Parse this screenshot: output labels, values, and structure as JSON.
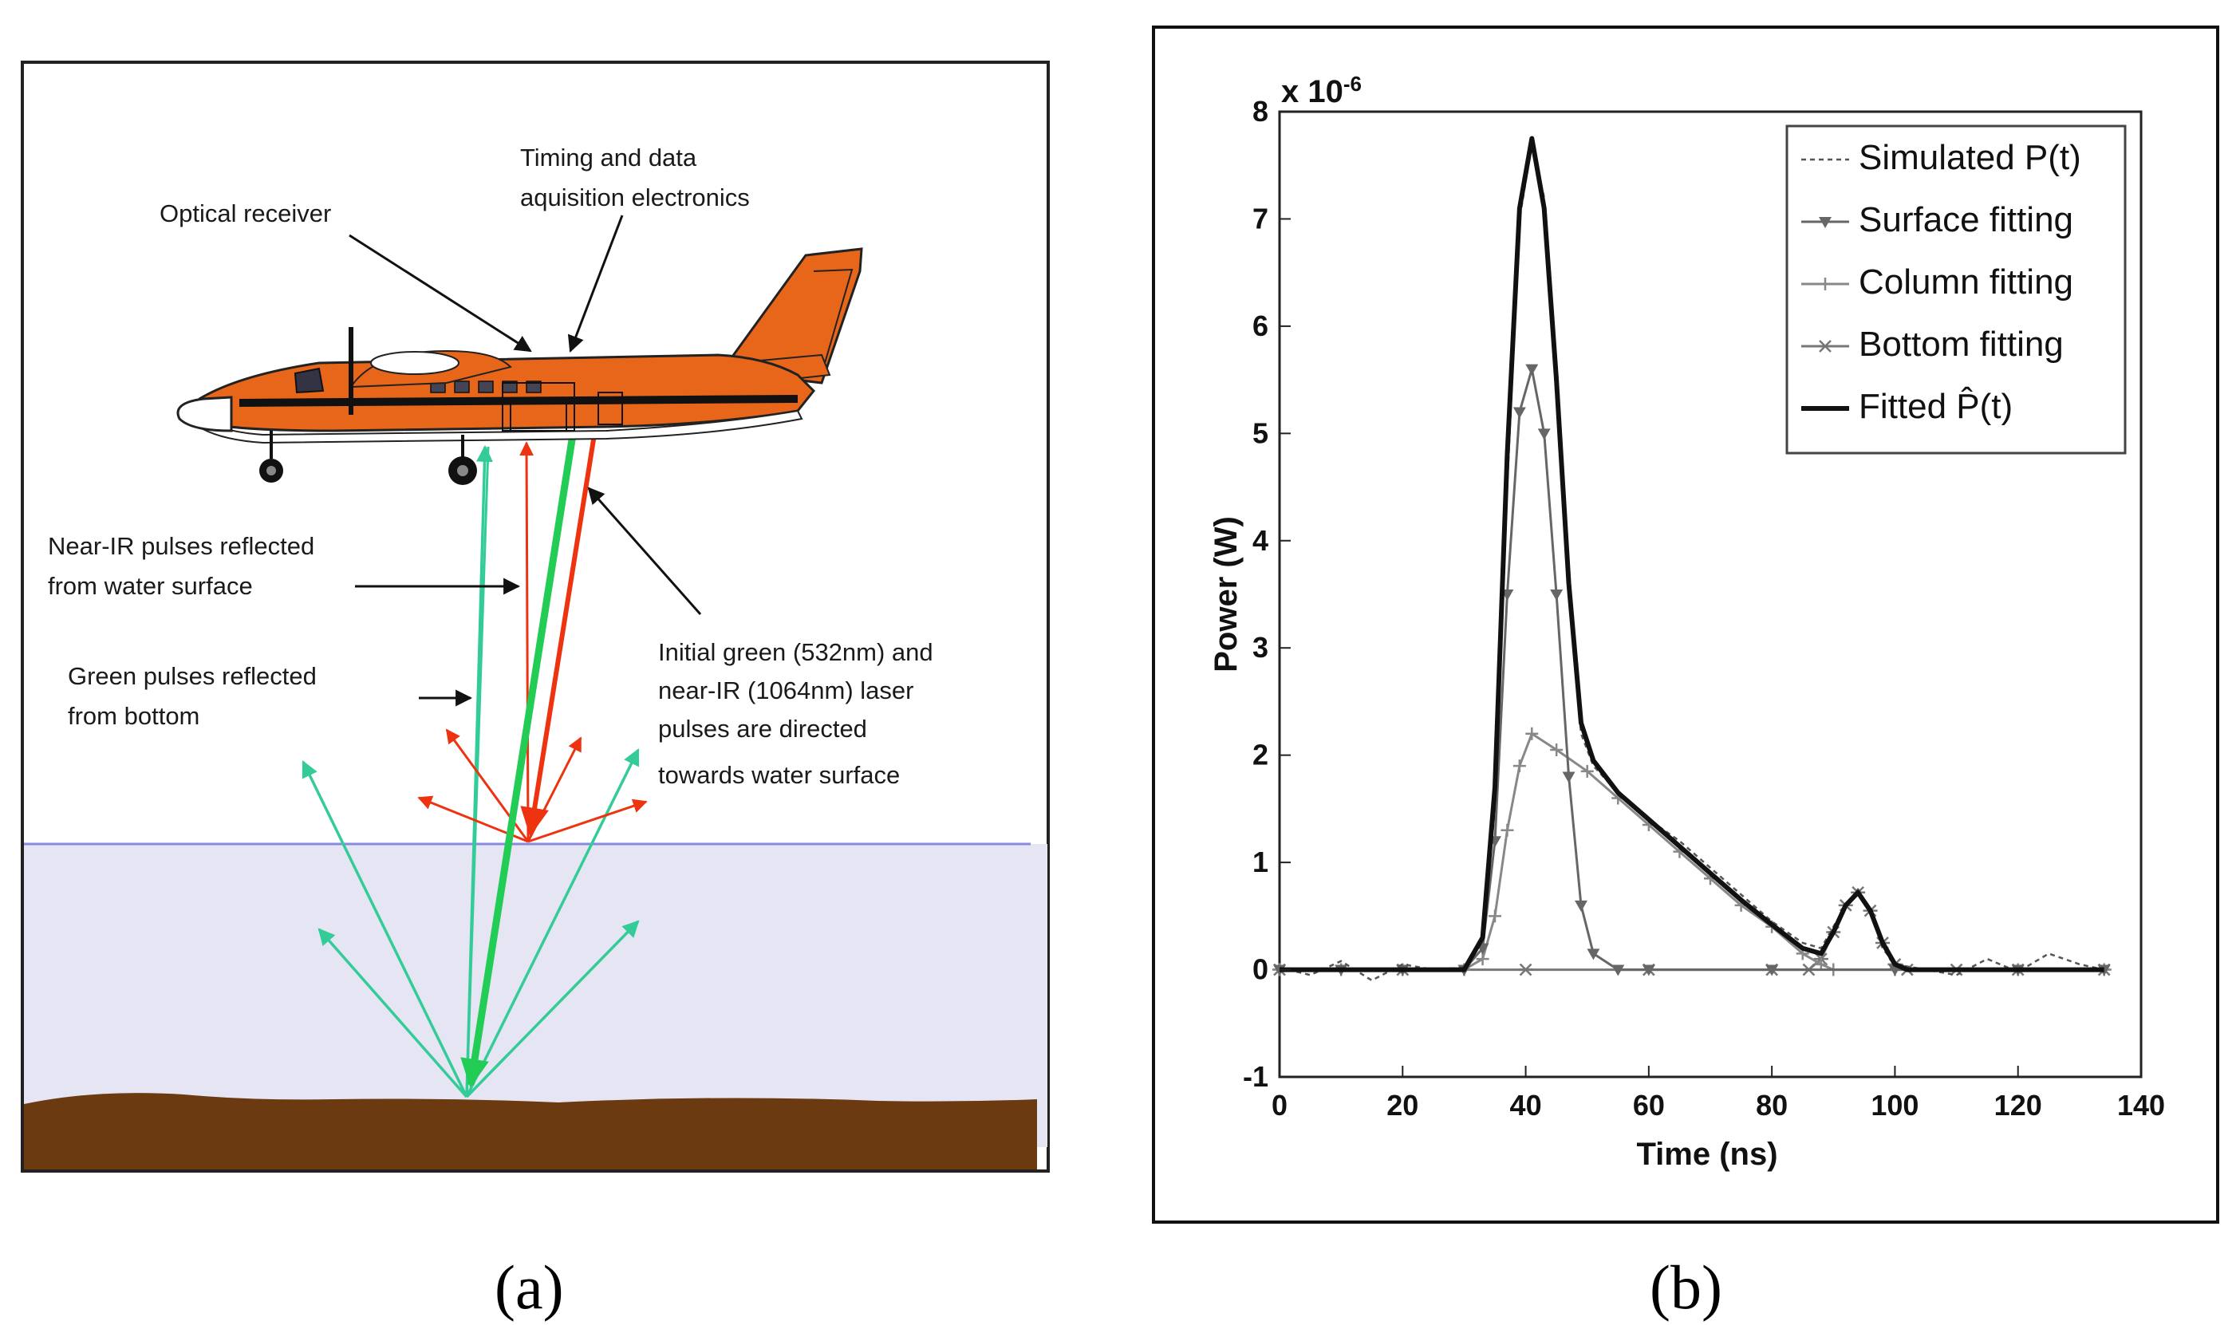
{
  "panel_a": {
    "caption": "(a)",
    "labels": {
      "timing_line1": "Timing and data",
      "timing_line2": "aquisition electronics",
      "optical_receiver": "Optical receiver",
      "nearir_line1": "Near-IR pulses reflected",
      "nearir_line2": "from water surface",
      "green_line1": "Green pulses reflected",
      "green_line2": "from bottom",
      "initial_line1": "Initial green (532nm) and",
      "initial_line2": "near-IR (1064nm) laser",
      "initial_line3": "pulses are directed",
      "initial_line4": "towards water surface"
    },
    "colors": {
      "green_beam": "#22cc55",
      "green_reflection": "#33cc99",
      "nearir_beam": "#ee3311",
      "water": "#e5e5f3",
      "water_line": "#8888dd",
      "seabed": "#6b3a10",
      "plane_body": "#e8661a"
    }
  },
  "panel_b": {
    "caption": "(b)",
    "chart_data": {
      "type": "line",
      "xlabel": "Time (ns)",
      "ylabel": "Power (W)",
      "y_exponent_label": "x 10",
      "y_exponent": "-6",
      "xlim": [
        0,
        140
      ],
      "ylim": [
        -1,
        8
      ],
      "xticks": [
        "0",
        "20",
        "40",
        "60",
        "80",
        "100",
        "120",
        "140"
      ],
      "yticks": [
        "-1",
        "0",
        "1",
        "2",
        "3",
        "4",
        "5",
        "6",
        "7",
        "8"
      ],
      "legend_position": "top-right",
      "legend": [
        "Simulated P(t)",
        "Surface fitting",
        "Column fitting",
        "Bottom fitting",
        "Fitted P̂(t)"
      ],
      "series": [
        {
          "name": "Simulated P(t)",
          "x": [
            0,
            5,
            10,
            15,
            20,
            25,
            30,
            33,
            35,
            37,
            39,
            41,
            43,
            45,
            47,
            49,
            51,
            55,
            60,
            65,
            70,
            75,
            80,
            85,
            88,
            90,
            92,
            94,
            96,
            98,
            100,
            105,
            110,
            115,
            120,
            125,
            130,
            134
          ],
          "y": [
            0.02,
            -0.05,
            0.08,
            -0.1,
            0.05,
            0.0,
            0.02,
            0.3,
            1.5,
            4.5,
            7.0,
            7.7,
            7.2,
            5.5,
            3.5,
            2.2,
            1.9,
            1.65,
            1.4,
            1.2,
            0.95,
            0.7,
            0.45,
            0.25,
            0.2,
            0.4,
            0.6,
            0.75,
            0.55,
            0.2,
            0.05,
            0.0,
            -0.05,
            0.1,
            -0.02,
            0.15,
            0.05,
            0.0
          ]
        },
        {
          "name": "Surface fitting",
          "x": [
            0,
            10,
            20,
            30,
            33,
            35,
            37,
            39,
            41,
            43,
            45,
            47,
            49,
            51,
            55,
            60,
            80,
            100,
            120,
            134
          ],
          "y": [
            0,
            0,
            0,
            0,
            0.2,
            1.2,
            3.5,
            5.2,
            5.6,
            5.0,
            3.5,
            1.8,
            0.6,
            0.15,
            0,
            0,
            0,
            0,
            0,
            0
          ]
        },
        {
          "name": "Column fitting",
          "x": [
            0,
            10,
            20,
            30,
            33,
            35,
            37,
            39,
            41,
            45,
            50,
            55,
            60,
            65,
            70,
            75,
            80,
            85,
            88,
            90,
            100,
            120,
            134
          ],
          "y": [
            0,
            0,
            0,
            0,
            0.1,
            0.5,
            1.3,
            1.9,
            2.2,
            2.05,
            1.85,
            1.6,
            1.35,
            1.1,
            0.85,
            0.6,
            0.4,
            0.15,
            0.05,
            0,
            0,
            0,
            0
          ]
        },
        {
          "name": "Bottom fitting",
          "x": [
            0,
            20,
            40,
            60,
            80,
            86,
            88,
            90,
            92,
            94,
            96,
            98,
            100,
            102,
            110,
            120,
            134
          ],
          "y": [
            0,
            0,
            0,
            0,
            0,
            0,
            0.1,
            0.35,
            0.6,
            0.72,
            0.55,
            0.25,
            0.05,
            0,
            0,
            0,
            0
          ]
        },
        {
          "name": "Fitted P̂(t)",
          "x": [
            0,
            10,
            20,
            30,
            33,
            35,
            37,
            39,
            41,
            43,
            45,
            47,
            49,
            51,
            55,
            60,
            65,
            70,
            75,
            80,
            85,
            88,
            90,
            92,
            94,
            96,
            98,
            100,
            102,
            110,
            120,
            134
          ],
          "y": [
            0,
            0,
            0,
            0,
            0.3,
            1.7,
            4.8,
            7.1,
            7.75,
            7.1,
            5.5,
            3.6,
            2.3,
            1.95,
            1.65,
            1.4,
            1.15,
            0.9,
            0.65,
            0.42,
            0.2,
            0.15,
            0.35,
            0.6,
            0.72,
            0.55,
            0.25,
            0.05,
            0,
            0,
            0,
            0
          ]
        }
      ]
    }
  }
}
